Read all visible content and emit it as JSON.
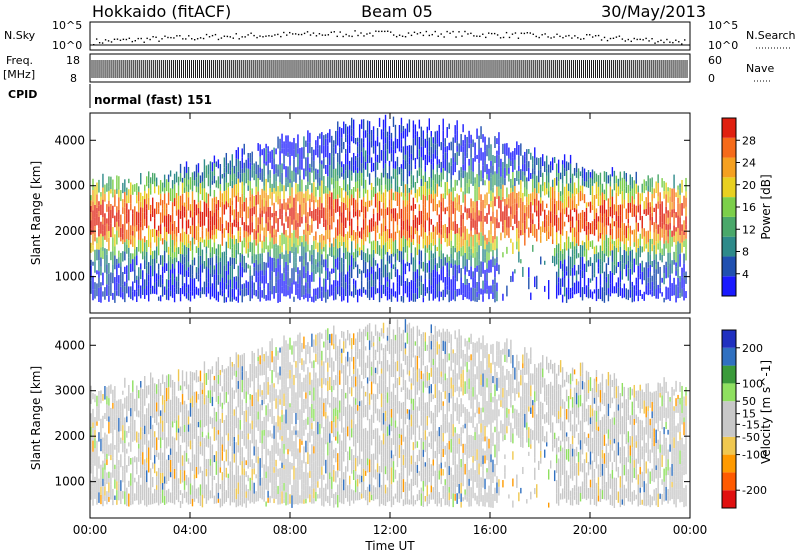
{
  "header": {
    "title": "Hokkaido (fitACF)",
    "beam": "Beam 05",
    "date": "30/May/2013"
  },
  "colors": {
    "power": [
      "#1a1aff",
      "#2050b0",
      "#2e8a8a",
      "#4aa86a",
      "#7ccf4a",
      "#e8d020",
      "#f5a020",
      "#f56a1a",
      "#e02010"
    ],
    "velocity": [
      "#e01010",
      "#ff5a00",
      "#ff9a00",
      "#f0c850",
      "#c8c8c8",
      "#c8c8c8",
      "#8fe060",
      "#3a9a3a",
      "#3070c0",
      "#2030c0"
    ]
  },
  "strip": {
    "nsky_label": "N.Sky",
    "nsearch_label": "N.Search",
    "nsky_ticks": [
      "10^5",
      "10^0"
    ],
    "nsearch_ticks": [
      "10^5",
      "10^0"
    ],
    "freq_label": "Freq.",
    "freq_unit": "[MHz]",
    "freq_ticks": [
      "18",
      "8"
    ],
    "nave_label": "Nave",
    "nave_ticks": [
      "60",
      "0"
    ],
    "cpid_label": "CPID",
    "cpid_value": "normal (fast) 151"
  },
  "chart_data": [
    {
      "type": "heatmap",
      "title": "",
      "xlabel": "",
      "ylabel": "Slant Range [km]",
      "xlim": [
        0,
        24
      ],
      "ylim": [
        200,
        4600
      ],
      "x_ticks": [
        "00:00",
        "04:00",
        "08:00",
        "12:00",
        "16:00",
        "20:00",
        "00:00"
      ],
      "y_ticks": [
        "1000",
        "2000",
        "3000",
        "4000"
      ],
      "colorbar": {
        "label": "Power [dB]",
        "range": [
          0,
          32
        ],
        "ticks": [
          "4",
          "8",
          "12",
          "16",
          "20",
          "24",
          "28"
        ]
      }
    },
    {
      "type": "heatmap",
      "title": "",
      "xlabel": "Time UT",
      "ylabel": "Slant Range [km]",
      "xlim": [
        0,
        24
      ],
      "ylim": [
        200,
        4600
      ],
      "x_ticks": [
        "00:00",
        "04:00",
        "08:00",
        "12:00",
        "16:00",
        "20:00",
        "00:00"
      ],
      "y_ticks": [
        "1000",
        "2000",
        "3000",
        "4000"
      ],
      "colorbar": {
        "label": "Velocity [m s^-1]",
        "range": [
          -250,
          250
        ],
        "ticks": [
          "200",
          "100",
          "50",
          "15",
          "-15",
          "-50",
          "-100",
          "-200"
        ]
      }
    }
  ]
}
